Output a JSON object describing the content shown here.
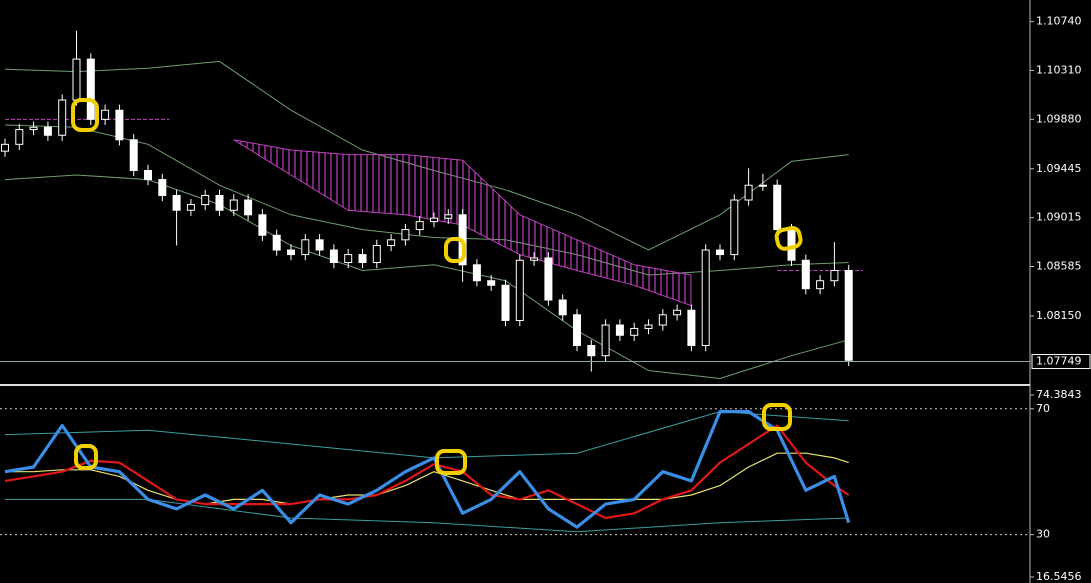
{
  "chart_data": [
    {
      "type": "candlestick",
      "open": [
        1.096,
        1.0966,
        1.0979,
        1.0981,
        1.0974,
        1.1005,
        1.1041,
        1.0988,
        1.0996,
        1.097,
        1.0943,
        1.0935,
        1.0921,
        1.0908,
        1.0913,
        1.0921,
        1.0908,
        1.0917,
        1.0904,
        1.0886,
        1.0873,
        1.0869,
        1.0882,
        1.0873,
        1.0862,
        1.0869,
        1.0862,
        1.0877,
        1.0882,
        1.0891,
        1.0898,
        1.0901,
        1.0904,
        1.086,
        1.0846,
        1.0842,
        1.0811,
        1.0864,
        1.0866,
        1.0829,
        1.0816,
        1.0789,
        1.078,
        1.0807,
        1.0798,
        1.0804,
        1.0807,
        1.0816,
        1.082,
        1.0789,
        1.0873,
        1.0869,
        1.0917,
        1.093,
        1.093,
        1.0891,
        1.0864,
        1.0839,
        1.0846,
        1.0855
      ],
      "high": [
        1.0971,
        1.0984,
        1.0986,
        1.0986,
        1.101,
        1.1066,
        1.1046,
        1.1001,
        1.1001,
        1.0975,
        1.0948,
        1.094,
        1.0926,
        1.0918,
        1.0926,
        1.0926,
        1.0922,
        1.0922,
        1.0909,
        1.0891,
        1.0878,
        1.0887,
        1.0887,
        1.0878,
        1.0874,
        1.0874,
        1.0882,
        1.0887,
        1.0896,
        1.0903,
        1.0906,
        1.0909,
        1.0909,
        1.0865,
        1.0851,
        1.0847,
        1.0869,
        1.0871,
        1.0871,
        1.0834,
        1.0821,
        1.0794,
        1.0812,
        1.0812,
        1.0809,
        1.0812,
        1.0821,
        1.0825,
        1.0825,
        1.0878,
        1.0878,
        1.0922,
        1.0945,
        1.094,
        1.0935,
        1.0896,
        1.0869,
        1.0851,
        1.088,
        1.086
      ],
      "low": [
        1.0955,
        1.0961,
        1.0974,
        1.0969,
        1.0969,
        1.1,
        1.0983,
        1.0983,
        1.0965,
        1.0938,
        1.093,
        1.0916,
        1.0877,
        1.0903,
        1.0908,
        1.0903,
        1.0903,
        1.0899,
        1.0881,
        1.0868,
        1.0864,
        1.0864,
        1.0868,
        1.0857,
        1.0857,
        1.0857,
        1.0857,
        1.0872,
        1.0877,
        1.0886,
        1.0893,
        1.0896,
        1.0845,
        1.0841,
        1.0837,
        1.0806,
        1.0806,
        1.0859,
        1.0824,
        1.0811,
        1.0784,
        1.0766,
        1.0775,
        1.0793,
        1.0793,
        1.0799,
        1.0802,
        1.0811,
        1.0784,
        1.0784,
        1.0864,
        1.0864,
        1.0912,
        1.0925,
        1.0886,
        1.0859,
        1.0834,
        1.0834,
        1.0841,
        1.0771
      ],
      "close": [
        1.0966,
        1.0979,
        1.0981,
        1.0974,
        1.1005,
        1.1041,
        1.0988,
        1.0996,
        1.097,
        1.0943,
        1.0935,
        1.0921,
        1.0908,
        1.0913,
        1.0921,
        1.0908,
        1.0917,
        1.0904,
        1.0886,
        1.0873,
        1.0869,
        1.0882,
        1.0873,
        1.0862,
        1.0869,
        1.0862,
        1.0877,
        1.0882,
        1.0891,
        1.0898,
        1.0901,
        1.0904,
        1.086,
        1.0846,
        1.0842,
        1.0811,
        1.0864,
        1.0866,
        1.0829,
        1.0816,
        1.0789,
        1.078,
        1.0807,
        1.0798,
        1.0804,
        1.0807,
        1.0816,
        1.082,
        1.0789,
        1.0873,
        1.0869,
        1.0917,
        1.093,
        1.093,
        1.0891,
        1.0864,
        1.0839,
        1.0846,
        1.0855,
        1.0776
      ],
      "bands": {
        "color": "#6f9f6f",
        "x": [
          0,
          5,
          10,
          15,
          20,
          25,
          30,
          35,
          40,
          45,
          50,
          55,
          59
        ],
        "upper": [
          1.1032,
          1.103,
          1.1033,
          1.1039,
          1.0996,
          1.0961,
          1.0943,
          1.0926,
          1.0904,
          1.0873,
          1.0904,
          1.0951,
          1.0957
        ],
        "middle": [
          1.0983,
          1.0981,
          1.0966,
          1.093,
          1.0904,
          1.0891,
          1.0884,
          1.0882,
          1.0869,
          1.0851,
          1.0855,
          1.086,
          1.0862
        ],
        "lower": [
          1.0935,
          1.0939,
          1.0935,
          1.0913,
          1.0877,
          1.0855,
          1.086,
          1.0846,
          1.0802,
          1.0767,
          1.076,
          1.078,
          1.0794
        ]
      },
      "cloud": {
        "color": "#c040c0",
        "x": [
          16,
          20,
          24,
          28,
          32,
          36,
          40,
          44,
          48
        ],
        "top": [
          1.097,
          1.0961,
          1.0957,
          1.0957,
          1.0952,
          1.0904,
          1.0882,
          1.086,
          1.0851
        ],
        "bottom": [
          1.097,
          1.0939,
          1.0908,
          1.0904,
          1.0895,
          1.0869,
          1.0855,
          1.0842,
          1.0824
        ]
      },
      "levels": [
        {
          "from": 0,
          "to": 11.5,
          "value": 1.0988
        },
        {
          "from": 54,
          "to": 60,
          "value": 1.0855
        }
      ],
      "current_price": 1.07749,
      "ylim": [
        1.0756,
        1.1093
      ],
      "yticks": [
        {
          "value": 1.1074,
          "label": "1.10740"
        },
        {
          "value": 1.1031,
          "label": "1.10310"
        },
        {
          "value": 1.0988,
          "label": "1.09880"
        },
        1.09445,
        1.09015,
        1.08585,
        {
          "value": 1.0815,
          "label": "1.08150"
        }
      ]
    },
    {
      "type": "line",
      "x": [
        0,
        2,
        4,
        6,
        8,
        10,
        12,
        14,
        16,
        18,
        20,
        22,
        24,
        26,
        28,
        30,
        32,
        34,
        36,
        38,
        40,
        42,
        44,
        46,
        48,
        50,
        52,
        54,
        56,
        58,
        59
      ],
      "series": [
        {
          "color": "#e8e070",
          "values": [
            50,
            50,
            50.6,
            50.6,
            48.5,
            44.1,
            41.2,
            39.7,
            41.2,
            41.2,
            39.7,
            41.2,
            42.6,
            42.6,
            45.6,
            50,
            47.1,
            44.1,
            41.2,
            41.2,
            41.2,
            41.2,
            41.2,
            41.2,
            42.6,
            45.6,
            51.5,
            55.9,
            55.9,
            54.4,
            52.9
          ]
        },
        {
          "color": "#e01818",
          "values": [
            47.1,
            48.5,
            50,
            53.5,
            52.9,
            47.1,
            41.2,
            39.7,
            39.7,
            39.7,
            39.7,
            41.2,
            41.2,
            42.6,
            47.1,
            52.4,
            50,
            42.6,
            41.2,
            44.1,
            39.7,
            35.3,
            36.8,
            41.2,
            44.1,
            52.9,
            58.8,
            64.7,
            52.9,
            45.6,
            42.6
          ]
        },
        {
          "color": "#3a8ee6",
          "values": [
            50,
            51.5,
            64.7,
            51.5,
            50,
            41.2,
            38.2,
            42.6,
            38.2,
            44.1,
            33.8,
            42.6,
            39.7,
            44.1,
            50,
            54.4,
            36.8,
            41.2,
            50,
            38.2,
            32.4,
            39.7,
            41.2,
            50,
            47.1,
            69.1,
            69.1,
            63.2,
            44.1,
            48.5,
            33.8
          ]
        }
      ],
      "bands": {
        "color": "#3aa0a0",
        "x": [
          0,
          10,
          20,
          30,
          40,
          50,
          59
        ],
        "upper": [
          61.8,
          63.2,
          58.8,
          54.4,
          55.9,
          69.1,
          66.2
        ],
        "lower": [
          41.2,
          41.2,
          35.3,
          33.8,
          30.9,
          33.8,
          35.3
        ]
      },
      "ylim": [
        16.5456,
        74.3843
      ],
      "yticks": [
        74.3843,
        70,
        30,
        16.5456
      ]
    }
  ]
}
